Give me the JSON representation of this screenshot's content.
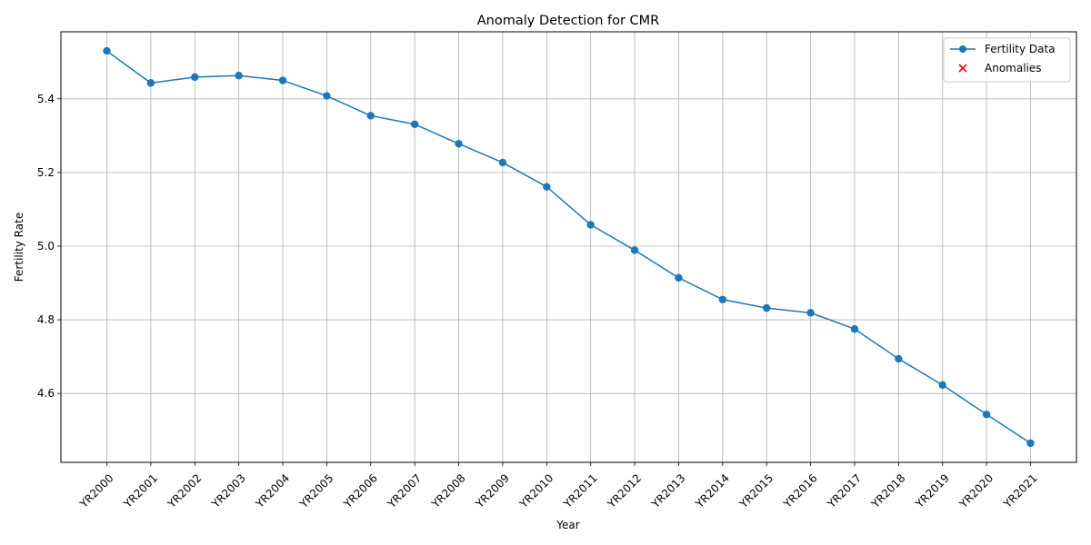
{
  "chart_data": {
    "type": "line",
    "title": "Anomaly Detection for CMR",
    "xlabel": "Year",
    "ylabel": "Fertility Rate",
    "categories": [
      "YR2000",
      "YR2001",
      "YR2002",
      "YR2003",
      "YR2004",
      "YR2005",
      "YR2006",
      "YR2007",
      "YR2008",
      "YR2009",
      "YR2010",
      "YR2011",
      "YR2012",
      "YR2013",
      "YR2014",
      "YR2015",
      "YR2016",
      "YR2017",
      "YR2018",
      "YR2019",
      "YR2020",
      "YR2021"
    ],
    "ylim": [
      4.413,
      5.582
    ],
    "yticks": [
      "4.6",
      "4.8",
      "5.0",
      "5.2",
      "5.4"
    ],
    "grid": true,
    "legend_position": "top-right",
    "series": [
      {
        "name": "Fertility Data",
        "color": "#1f77b4",
        "marker": "circle",
        "values": [
          5.53,
          5.443,
          5.459,
          5.463,
          5.45,
          5.408,
          5.354,
          5.331,
          5.278,
          5.227,
          5.161,
          5.058,
          4.989,
          4.914,
          4.855,
          4.832,
          4.819,
          4.775,
          4.694,
          4.623,
          4.543,
          4.465
        ]
      }
    ],
    "anomalies": {
      "name": "Anomalies",
      "color": "#ff0000",
      "marker": "x",
      "points": []
    }
  }
}
